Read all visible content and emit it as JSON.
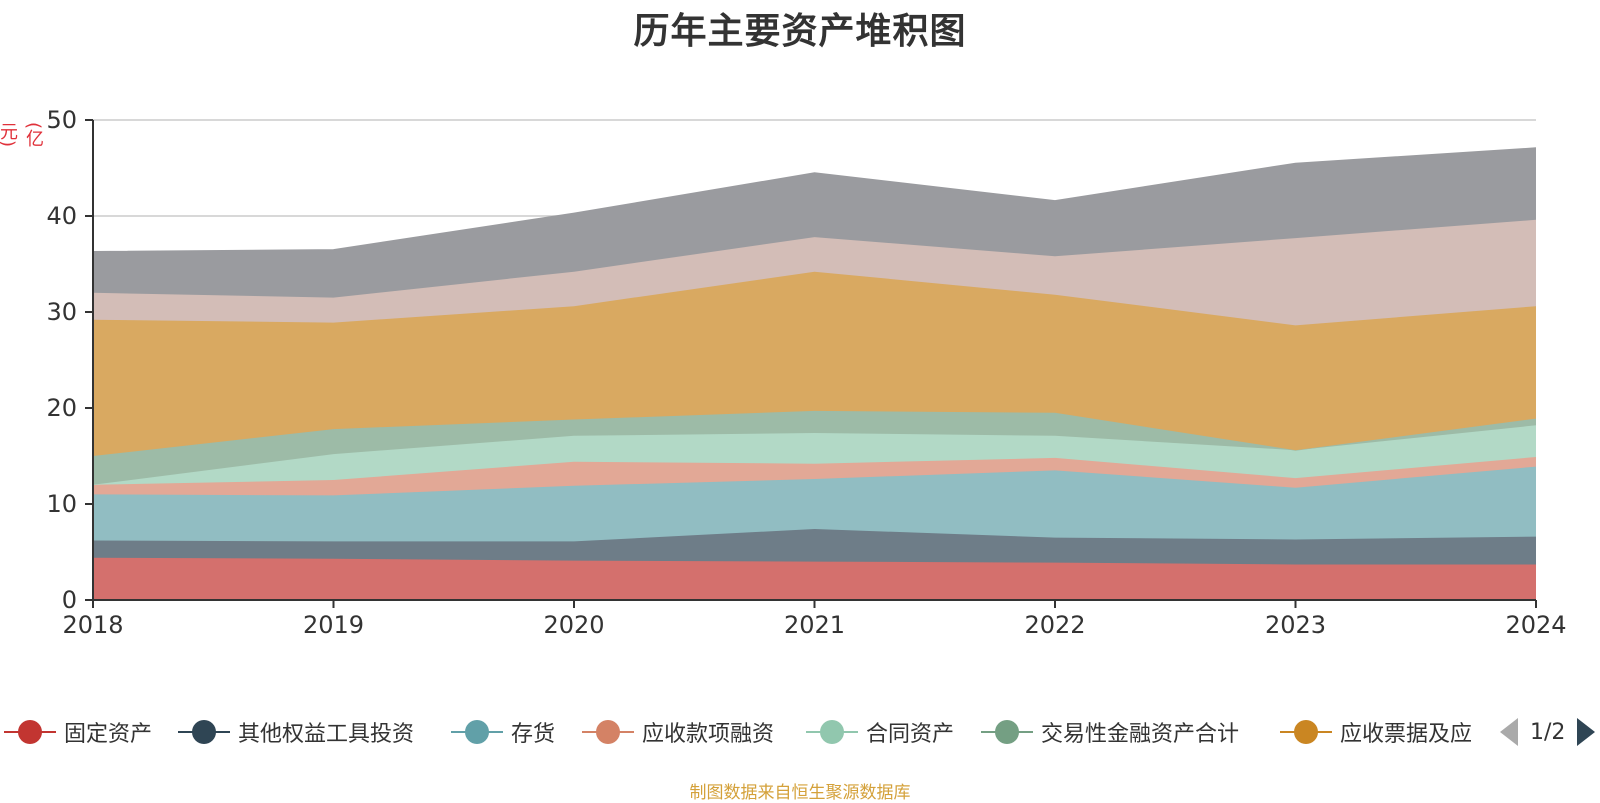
{
  "chart_data": {
    "type": "area",
    "title": "历年主要资产堆积图",
    "ylabel": "(亿元)",
    "categories": [
      "2018",
      "2019",
      "2020",
      "2021",
      "2022",
      "2023",
      "2024"
    ],
    "ylim": [
      0,
      50
    ],
    "yticks": [
      0,
      10,
      20,
      30,
      40,
      50
    ],
    "grid": true,
    "stacked": true,
    "legend_position": "bottom",
    "series": [
      {
        "name": "固定资产",
        "color": "#c23531",
        "area_color": "#d4706d",
        "values": [
          4.4,
          4.3,
          4.1,
          4.0,
          3.9,
          3.7,
          3.7
        ]
      },
      {
        "name": "其他权益工具投资",
        "color": "#2f4554",
        "area_color": "#6e7d88",
        "values": [
          1.8,
          1.8,
          2.0,
          3.4,
          2.6,
          2.6,
          2.9
        ]
      },
      {
        "name": "存货",
        "color": "#61a0a8",
        "area_color": "#91bdc2",
        "values": [
          4.8,
          4.8,
          5.8,
          5.2,
          7.0,
          5.4,
          7.3
        ]
      },
      {
        "name": "应收款项融资",
        "color": "#d48265",
        "area_color": "#e2a896",
        "values": [
          1.0,
          1.6,
          2.5,
          1.6,
          1.3,
          1.0,
          1.0
        ]
      },
      {
        "name": "合同资产",
        "color": "#91c7ae",
        "area_color": "#b2d9c6",
        "values": [
          0.0,
          2.7,
          2.7,
          3.2,
          2.3,
          2.9,
          3.3
        ]
      },
      {
        "name": "交易性金融资产合计",
        "color": "#749f83",
        "area_color": "#9dbba7",
        "values": [
          3.0,
          2.6,
          1.7,
          2.3,
          2.4,
          0.0,
          0.7
        ]
      },
      {
        "name": "应收票据及应",
        "color": "#ca8622",
        "area_color": "#d9a961",
        "values": [
          14.2,
          11.1,
          11.8,
          14.5,
          12.3,
          13.0,
          11.7
        ]
      },
      {
        "name": "",
        "color": "#bda29a",
        "area_color": "#d3bdb7",
        "values": [
          2.8,
          2.6,
          3.6,
          3.6,
          4.0,
          9.1,
          9.0
        ]
      },
      {
        "name": "",
        "color": "#6e7074",
        "area_color": "#9a9b9f",
        "values": [
          4.3,
          5.0,
          6.1,
          6.7,
          5.8,
          7.8,
          7.5
        ]
      }
    ]
  },
  "legend": {
    "page": "1/2"
  },
  "source": "制图数据来自恒生聚源数据库"
}
